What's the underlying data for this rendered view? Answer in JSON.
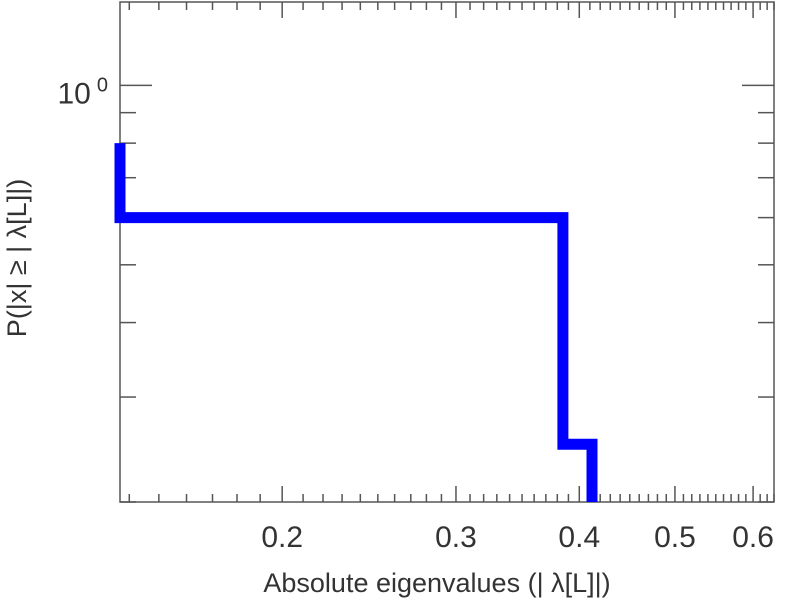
{
  "chart_data": {
    "type": "line",
    "step": true,
    "xscale": "log",
    "yscale": "log",
    "xlim": [
      0.137,
      0.63
    ],
    "ylim": [
      0.2,
      1.38
    ],
    "xticks": [
      {
        "value": 0.2,
        "label": "0.2"
      },
      {
        "value": 0.3,
        "label": "0.3"
      },
      {
        "value": 0.4,
        "label": "0.4"
      },
      {
        "value": 0.5,
        "label": "0.5"
      },
      {
        "value": 0.6,
        "label": "0.6"
      }
    ],
    "yticks": [
      {
        "value": 1.0,
        "base": "10",
        "exponent": "0"
      }
    ],
    "xlabel": "Absolute eigenvalues (|     λ[L]|)",
    "ylabel": "P(|x|  ≥ | λ[L]|)",
    "series": [
      {
        "color": "#0000ff",
        "x": [
          0.137,
          0.137,
          0.385,
          0.385,
          0.412,
          0.412
        ],
        "y": [
          0.8,
          0.6,
          0.6,
          0.25,
          0.25,
          0.2
        ]
      }
    ]
  }
}
